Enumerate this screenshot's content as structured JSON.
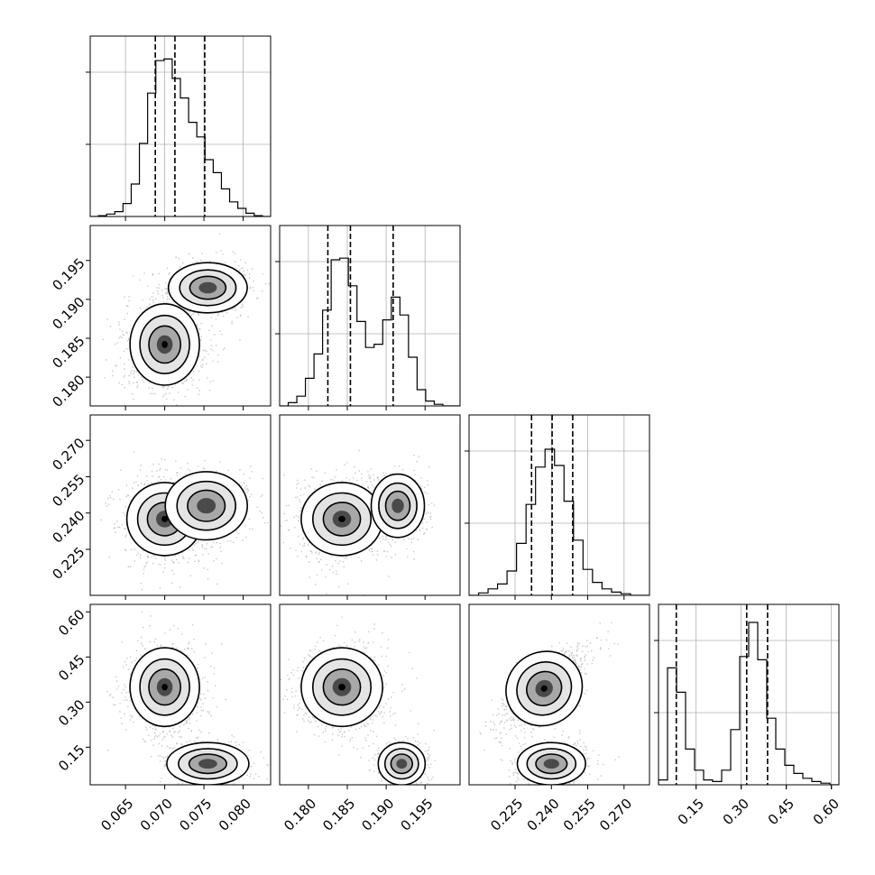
{
  "chart_data": {
    "type": "corner",
    "parameters": 4,
    "x_tick_labels": [
      [
        "0.065",
        "0.070",
        "0.075",
        "0.080"
      ],
      [
        "0.180",
        "0.185",
        "0.190",
        "0.195"
      ],
      [
        "0.225",
        "0.240",
        "0.255",
        "0.270"
      ],
      [
        "0.15",
        "0.30",
        "0.45",
        "0.60"
      ]
    ],
    "y_tick_labels": {
      "row1": [
        "0.195",
        "0.190",
        "0.185",
        "0.180"
      ],
      "row2": [
        "0.270",
        "0.255",
        "0.240",
        "0.225"
      ],
      "row3": [
        "0.60",
        "0.45",
        "0.30",
        "0.15"
      ]
    },
    "ranges": [
      [
        0.0605,
        0.0835
      ],
      [
        0.1763,
        0.1995
      ],
      [
        0.206,
        0.2805
      ],
      [
        0.025,
        0.625
      ]
    ],
    "x_ticks": [
      [
        0.065,
        0.07,
        0.075,
        0.08
      ],
      [
        0.18,
        0.185,
        0.19,
        0.195
      ],
      [
        0.225,
        0.24,
        0.255,
        0.27
      ],
      [
        0.15,
        0.3,
        0.45,
        0.6
      ]
    ],
    "quantiles": [
      [
        0.0688,
        0.0713,
        0.0751
      ],
      [
        0.1825,
        0.1854,
        0.1909
      ],
      [
        0.2318,
        0.2403,
        0.2488
      ],
      [
        0.0842,
        0.3183,
        0.3877
      ]
    ],
    "histograms": [
      [
        0,
        0.005,
        0.015,
        0.03,
        0.08,
        0.2,
        0.45,
        0.76,
        0.96,
        0.97,
        0.85,
        0.73,
        0.58,
        0.49,
        0.35,
        0.27,
        0.17,
        0.09,
        0.05,
        0.02,
        0.005,
        0
      ],
      [
        0,
        0.02,
        0.06,
        0.17,
        0.32,
        0.59,
        0.9,
        0.91,
        0.74,
        0.52,
        0.36,
        0.38,
        0.53,
        0.67,
        0.56,
        0.3,
        0.1,
        0.03,
        0.01,
        0,
        0
      ],
      [
        0,
        0.015,
        0.04,
        0.07,
        0.15,
        0.32,
        0.56,
        0.79,
        0.9,
        0.8,
        0.58,
        0.34,
        0.16,
        0.08,
        0.04,
        0.02,
        0.01,
        0,
        0
      ],
      [
        0.03,
        0.72,
        0.57,
        0.22,
        0.09,
        0.03,
        0.02,
        0.09,
        0.34,
        0.79,
        1.0,
        0.77,
        0.41,
        0.22,
        0.12,
        0.07,
        0.04,
        0.02,
        0.01,
        0
      ]
    ],
    "modes": [
      {
        "pair": [
          0,
          1
        ],
        "components": [
          {
            "x": 0.07,
            "y": 0.1842,
            "sx": 0.0022,
            "sy": 0.0026,
            "w": 0.66
          },
          {
            "x": 0.0755,
            "y": 0.1915,
            "sx": 0.0025,
            "sy": 0.0016,
            "w": 0.34
          }
        ]
      },
      {
        "pair": [
          0,
          2
        ],
        "components": [
          {
            "x": 0.07,
            "y": 0.2375,
            "sx": 0.0024,
            "sy": 0.0075,
            "w": 0.66
          },
          {
            "x": 0.0753,
            "y": 0.243,
            "sx": 0.0026,
            "sy": 0.007,
            "w": 0.34
          }
        ]
      },
      {
        "pair": [
          1,
          2
        ],
        "components": [
          {
            "x": 0.1843,
            "y": 0.2375,
            "sx": 0.0026,
            "sy": 0.0075,
            "w": 0.66
          },
          {
            "x": 0.1915,
            "y": 0.243,
            "sx": 0.0017,
            "sy": 0.0065,
            "w": 0.34
          }
        ]
      },
      {
        "pair": [
          0,
          3
        ],
        "components": [
          {
            "x": 0.07,
            "y": 0.35,
            "sx": 0.0022,
            "sy": 0.065,
            "w": 0.67
          },
          {
            "x": 0.0755,
            "y": 0.095,
            "sx": 0.0026,
            "sy": 0.035,
            "w": 0.33
          }
        ]
      },
      {
        "pair": [
          1,
          3
        ],
        "components": [
          {
            "x": 0.1843,
            "y": 0.35,
            "sx": 0.0026,
            "sy": 0.065,
            "w": 0.67
          },
          {
            "x": 0.192,
            "y": 0.095,
            "sx": 0.0015,
            "sy": 0.035,
            "w": 0.33
          }
        ]
      },
      {
        "pair": [
          2,
          3
        ],
        "components": [
          {
            "x": 0.237,
            "y": 0.345,
            "sx": 0.008,
            "sy": 0.06,
            "w": 0.67,
            "rho": 0.75
          },
          {
            "x": 0.24,
            "y": 0.095,
            "sx": 0.007,
            "sy": 0.035,
            "w": 0.33
          }
        ]
      }
    ],
    "grid": true,
    "colors": {
      "line": "#000000",
      "grid": "#b0b0b0",
      "points": "#000000"
    }
  }
}
